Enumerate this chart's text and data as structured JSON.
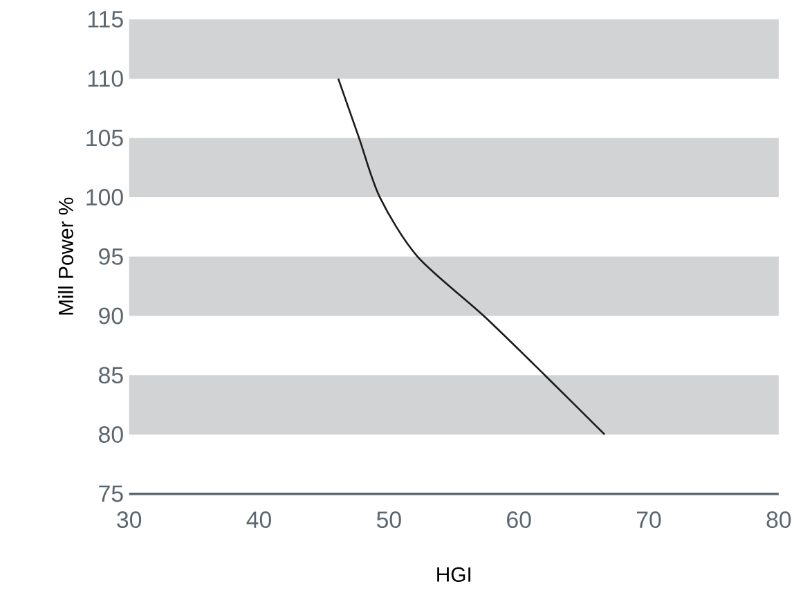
{
  "chart_data": {
    "type": "line",
    "xlabel": "HGI",
    "ylabel": "Mill Power %",
    "x": [
      46.1,
      47.7,
      49.3,
      52.2,
      57.3,
      62.0,
      66.6
    ],
    "series": [
      {
        "color": "#1a1a1a",
        "values": [
          110,
          105,
          100,
          95,
          90,
          85,
          80
        ]
      }
    ],
    "xlim": [
      30,
      80
    ],
    "ylim": [
      75,
      115
    ],
    "xticks": [
      30,
      40,
      50,
      60,
      70,
      80
    ],
    "yticks": [
      75,
      80,
      85,
      90,
      95,
      100,
      105,
      110,
      115
    ],
    "bands": [
      {
        "axis": "y",
        "from": 80,
        "to": 85,
        "color": "#d1d3d4"
      },
      {
        "axis": "y",
        "from": 90,
        "to": 95,
        "color": "#d1d3d4"
      },
      {
        "axis": "y",
        "from": 100,
        "to": 105,
        "color": "#d1d3d4"
      },
      {
        "axis": "y",
        "from": 110,
        "to": 115,
        "color": "#d1d3d4"
      }
    ],
    "grid": false,
    "marker": "none",
    "line_style": "solid"
  }
}
